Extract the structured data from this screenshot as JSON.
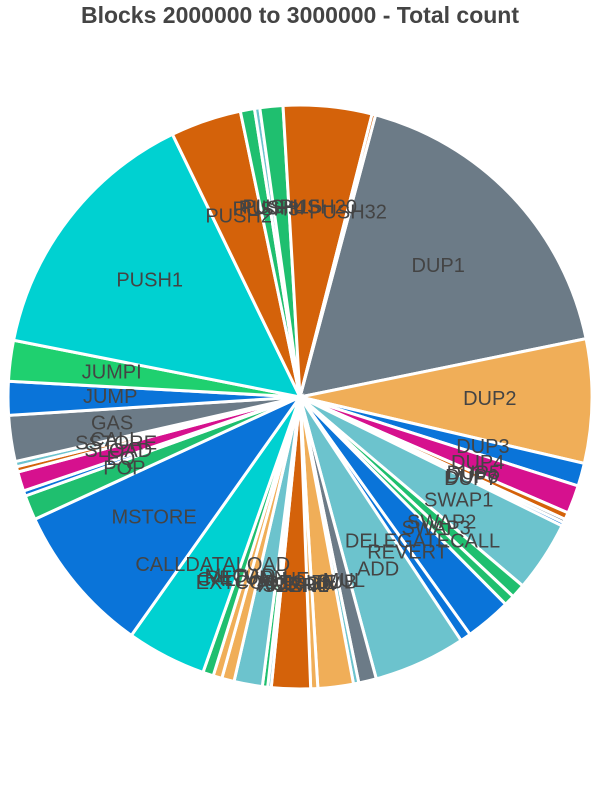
{
  "chart_data": {
    "type": "pie",
    "title": "Blocks 2000000 to 3000000 - Total count",
    "legend": "none",
    "slices": [
      {
        "label": "DUP1",
        "value": 18.0,
        "color": "#6c7b87"
      },
      {
        "label": "DUP2",
        "value": 7.0,
        "color": "#f0ae58"
      },
      {
        "label": "DUP3",
        "value": 1.3,
        "color": "#0a74d9"
      },
      {
        "label": "DUP4",
        "value": 1.6,
        "color": "#d6118e"
      },
      {
        "label": "DUP5",
        "value": 0.4,
        "color": "#d4620a"
      },
      {
        "label": "DUP6",
        "value": 0.2,
        "color": "#6c7b87"
      },
      {
        "label": "DUP7",
        "value": 0.2,
        "color": "#0a74d9"
      },
      {
        "label": "SWAP1",
        "value": 4.0,
        "color": "#6cc3cd"
      },
      {
        "label": "SWAP2",
        "value": 0.8,
        "color": "#1fbf6f"
      },
      {
        "label": "SWAP3",
        "value": 0.6,
        "color": "#1fbf6f"
      },
      {
        "label": "DELEGATECALL",
        "value": 2.6,
        "color": "#0a74d9"
      },
      {
        "label": "REVERT",
        "value": 0.6,
        "color": "#0a74d9"
      },
      {
        "label": "ADD",
        "value": 5.2,
        "color": "#6cc3cd"
      },
      {
        "label": "MUL",
        "value": 1.0,
        "color": "#6c7b87"
      },
      {
        "label": "SUB",
        "value": 0.3,
        "color": "#6cc3cd"
      },
      {
        "label": "DIV",
        "value": 2.0,
        "color": "#f0ae58"
      },
      {
        "label": "SHL",
        "value": 0.4,
        "color": "#f0ae58"
      },
      {
        "label": "ISZERO",
        "value": 2.2,
        "color": "#d4620a"
      },
      {
        "label": "XOR",
        "value": 0.2,
        "color": "#6cc3cd"
      },
      {
        "label": "AND",
        "value": 0.3,
        "color": "#1fbf6f"
      },
      {
        "label": "EXTCODESIZE",
        "value": 1.6,
        "color": "#6cc3cd"
      },
      {
        "label": "CALLVALUE",
        "value": 0.7,
        "color": "#f0ae58"
      },
      {
        "label": "RETURN",
        "value": 0.5,
        "color": "#f0ae58"
      },
      {
        "label": "MLOAD",
        "value": 0.6,
        "color": "#1fbf6f"
      },
      {
        "label": "CALLDATALOAD",
        "value": 4.5,
        "color": "#00d1d1"
      },
      {
        "label": "MSTORE",
        "value": 8.5,
        "color": "#0a74d9"
      },
      {
        "label": "POP",
        "value": 1.4,
        "color": "#1fbf6f"
      },
      {
        "label": "EQ",
        "value": 0.3,
        "color": "#0a74d9"
      },
      {
        "label": "SLOAD",
        "value": 1.1,
        "color": "#d6118e"
      },
      {
        "label": "SSTORE",
        "value": 0.3,
        "color": "#d4620a"
      },
      {
        "label": "CALL",
        "value": 0.3,
        "color": "#6cc3cd"
      },
      {
        "label": "GAS",
        "value": 2.6,
        "color": "#6c7b87"
      },
      {
        "label": "JUMP",
        "value": 1.9,
        "color": "#0a74d9"
      },
      {
        "label": "JUMPI",
        "value": 2.3,
        "color": "#1fd06f"
      },
      {
        "label": "PUSH1",
        "value": 15.0,
        "color": "#00d1d1"
      },
      {
        "label": "PUSH2",
        "value": 4.0,
        "color": "#d4620a"
      },
      {
        "label": "PUSH3",
        "value": 0.8,
        "color": "#1fbf6f"
      },
      {
        "label": "PUSH4",
        "value": 0.3,
        "color": "#6cc3cd"
      },
      {
        "label": "PUSH15",
        "value": 1.3,
        "color": "#1fbf6f"
      },
      {
        "label": "PUSH20",
        "value": 5.0,
        "color": "#d4620a"
      },
      {
        "label": "PUSH32",
        "value": 0.2,
        "color": "#d4620a"
      }
    ]
  }
}
